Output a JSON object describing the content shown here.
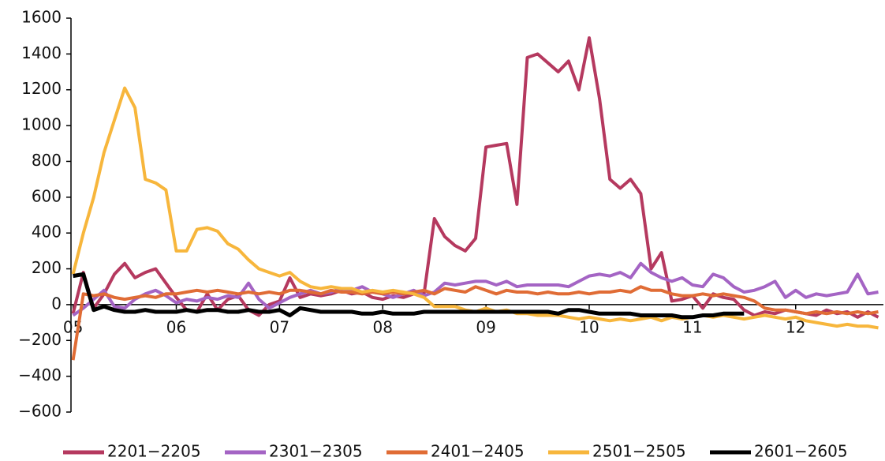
{
  "chart_data": {
    "type": "line",
    "x": [
      5.0,
      5.1,
      5.2,
      5.3,
      5.4,
      5.5,
      5.6,
      5.7,
      5.8,
      5.9,
      6.0,
      6.1,
      6.2,
      6.3,
      6.4,
      6.5,
      6.6,
      6.7,
      6.8,
      6.9,
      7.0,
      7.1,
      7.2,
      7.3,
      7.4,
      7.5,
      7.6,
      7.7,
      7.8,
      7.9,
      8.0,
      8.1,
      8.2,
      8.3,
      8.4,
      8.5,
      8.6,
      8.7,
      8.8,
      8.9,
      9.0,
      9.1,
      9.2,
      9.3,
      9.4,
      9.5,
      9.6,
      9.7,
      9.8,
      9.9,
      10.0,
      10.1,
      10.2,
      10.3,
      10.4,
      10.5,
      10.6,
      10.7,
      10.8,
      10.9,
      11.0,
      11.1,
      11.2,
      11.3,
      11.4,
      11.5,
      11.6,
      11.7,
      11.8,
      11.9,
      12.0,
      12.1,
      12.2,
      12.3,
      12.4,
      12.5,
      12.6,
      12.7,
      12.8
    ],
    "series": [
      {
        "name": "2201−2205",
        "color": "#b5395f",
        "values": [
          -50,
          180,
          -20,
          60,
          170,
          230,
          150,
          180,
          200,
          120,
          40,
          -30,
          -40,
          60,
          -30,
          30,
          50,
          -30,
          -60,
          0,
          20,
          150,
          40,
          60,
          50,
          60,
          80,
          60,
          70,
          40,
          30,
          50,
          40,
          60,
          60,
          480,
          380,
          330,
          300,
          370,
          880,
          890,
          900,
          560,
          1380,
          1400,
          1350,
          1300,
          1360,
          1200,
          1490,
          1150,
          700,
          650,
          700,
          620,
          200,
          290,
          20,
          30,
          50,
          -20,
          60,
          40,
          30,
          -30,
          -60,
          -40,
          -50,
          -30,
          -40,
          -50,
          -60,
          -30,
          -50,
          -40,
          -70,
          -40,
          -70
        ]
      },
      {
        "name": "2301−2305",
        "color": "#a464c4",
        "values": [
          -60,
          -20,
          30,
          80,
          -10,
          -20,
          30,
          60,
          80,
          50,
          10,
          30,
          20,
          40,
          30,
          50,
          40,
          120,
          30,
          -20,
          10,
          40,
          60,
          80,
          60,
          70,
          90,
          80,
          100,
          70,
          60,
          40,
          60,
          80,
          50,
          70,
          120,
          110,
          120,
          130,
          130,
          110,
          130,
          100,
          110,
          110,
          110,
          110,
          100,
          130,
          160,
          170,
          160,
          180,
          150,
          230,
          180,
          150,
          130,
          150,
          110,
          100,
          170,
          150,
          100,
          70,
          80,
          100,
          130,
          40,
          80,
          40,
          60,
          50,
          60,
          70,
          170,
          60,
          70
        ]
      },
      {
        "name": "2401−2405",
        "color": "#e06c35",
        "values": [
          -310,
          60,
          50,
          60,
          40,
          30,
          40,
          50,
          40,
          60,
          60,
          70,
          80,
          70,
          80,
          70,
          60,
          70,
          60,
          70,
          60,
          80,
          80,
          70,
          60,
          80,
          70,
          70,
          60,
          70,
          60,
          70,
          60,
          70,
          80,
          60,
          90,
          80,
          70,
          100,
          80,
          60,
          80,
          70,
          70,
          60,
          70,
          60,
          60,
          70,
          60,
          70,
          70,
          80,
          70,
          100,
          80,
          80,
          60,
          50,
          50,
          60,
          50,
          60,
          50,
          40,
          20,
          -20,
          -30,
          -30,
          -40,
          -50,
          -40,
          -50,
          -40,
          -50,
          -40,
          -50,
          -40
        ]
      },
      {
        "name": "2501−2505",
        "color": "#f7b63c",
        "values": [
          170,
          400,
          600,
          850,
          1030,
          1210,
          1100,
          700,
          680,
          640,
          300,
          300,
          420,
          430,
          410,
          340,
          310,
          250,
          200,
          180,
          160,
          180,
          130,
          100,
          90,
          100,
          90,
          90,
          70,
          80,
          70,
          80,
          70,
          60,
          40,
          -10,
          -10,
          -10,
          -30,
          -40,
          -20,
          -40,
          -30,
          -50,
          -50,
          -60,
          -60,
          -60,
          -70,
          -80,
          -70,
          -80,
          -90,
          -80,
          -90,
          -80,
          -70,
          -90,
          -70,
          -80,
          -70,
          -60,
          -70,
          -60,
          -70,
          -80,
          -70,
          -60,
          -70,
          -80,
          -70,
          -90,
          -100,
          -110,
          -120,
          -110,
          -120,
          -120,
          -130
        ]
      },
      {
        "name": "2601−2605",
        "color": "#000000",
        "values": [
          160,
          170,
          -30,
          -10,
          -30,
          -40,
          -40,
          -30,
          -40,
          -40,
          -40,
          -30,
          -40,
          -30,
          -30,
          -40,
          -40,
          -30,
          -40,
          -40,
          -30,
          -60,
          -20,
          -30,
          -40,
          -40,
          -40,
          -40,
          -50,
          -50,
          -40,
          -50,
          -50,
          -50,
          -40,
          -40,
          -40,
          -40,
          -40,
          -40,
          -40,
          -40,
          -40,
          -40,
          -40,
          -40,
          -40,
          -50,
          -30,
          -30,
          -40,
          -50,
          -50,
          -50,
          -50,
          -60,
          -60,
          -60,
          -60,
          -70,
          -70,
          -60,
          -60,
          -50,
          -50,
          -50,
          null,
          null,
          null,
          null,
          null,
          null,
          null,
          null,
          null,
          null,
          null,
          null,
          null
        ]
      }
    ],
    "xlim": [
      4.98,
      12.85
    ],
    "xticks": [
      {
        "value": 5,
        "label": "05"
      },
      {
        "value": 6,
        "label": "06"
      },
      {
        "value": 7,
        "label": "07"
      },
      {
        "value": 8,
        "label": "08"
      },
      {
        "value": 9,
        "label": "09"
      },
      {
        "value": 10,
        "label": "10"
      },
      {
        "value": 11,
        "label": "11"
      },
      {
        "value": 12,
        "label": "12"
      }
    ],
    "ylim": [
      -600,
      1600
    ],
    "yticks": [
      {
        "value": -600,
        "label": "−600"
      },
      {
        "value": -400,
        "label": "−400"
      },
      {
        "value": -200,
        "label": "−200"
      },
      0,
      200,
      400,
      600,
      800,
      1000,
      1200,
      1400,
      1600
    ],
    "grid": false,
    "legend": "bottom"
  }
}
